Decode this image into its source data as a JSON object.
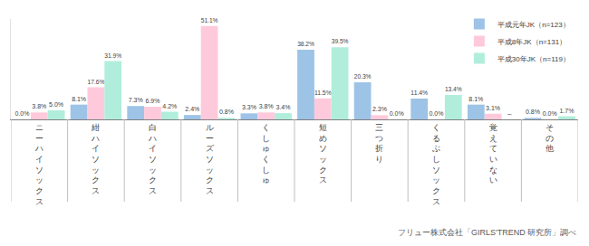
{
  "chart_data": {
    "type": "bar",
    "categories": [
      "ニーハイソックス",
      "紺ハイソックス",
      "白ハイソックス",
      "ルーズソックス",
      "くしゅくしゅ",
      "短めソックス",
      "三つ折り",
      "くるぶしソックス",
      "覚えていない",
      "その他"
    ],
    "series": [
      {
        "name": "平成元年JK（n=123）",
        "color": "#9dc3e6",
        "values": [
          0.0,
          8.1,
          7.3,
          2.4,
          3.3,
          38.2,
          20.3,
          11.4,
          8.1,
          0.8
        ],
        "value_labels": [
          "0.0%",
          "8.1%",
          "7.3%",
          "2.4%",
          "3.3%",
          "38.2%",
          "20.3%",
          "11.4%",
          "8.1%",
          "0.8%"
        ]
      },
      {
        "name": "平成8年JK（n=131）",
        "color": "#ffc9dc",
        "values": [
          3.8,
          17.6,
          6.9,
          51.1,
          3.8,
          11.5,
          2.3,
          0.0,
          3.1,
          0.0
        ],
        "value_labels": [
          "3.8%",
          "17.6%",
          "6.9%",
          "51.1%",
          "3.8%",
          "11.5%",
          "2.3%",
          "0.0%",
          "3.1%",
          "0.0%"
        ]
      },
      {
        "name": "平成30年JK（n=119）",
        "color": "#b0eedb",
        "values": [
          5.0,
          31.9,
          4.2,
          0.8,
          3.4,
          39.5,
          0.0,
          13.4,
          null,
          1.7
        ],
        "value_labels": [
          "5.0%",
          "31.9%",
          "4.2%",
          "0.8%",
          "3.4%",
          "39.5%",
          "0.0%",
          "13.4%",
          "–",
          "1.7%"
        ]
      }
    ],
    "ylim": [
      0,
      55
    ],
    "tick_labels": "x",
    "data_labels": true,
    "grid": false,
    "legend": "top right",
    "annotations": [
      "フリュー株式会社「GIRLS'TREND 研究所」調べ"
    ]
  }
}
